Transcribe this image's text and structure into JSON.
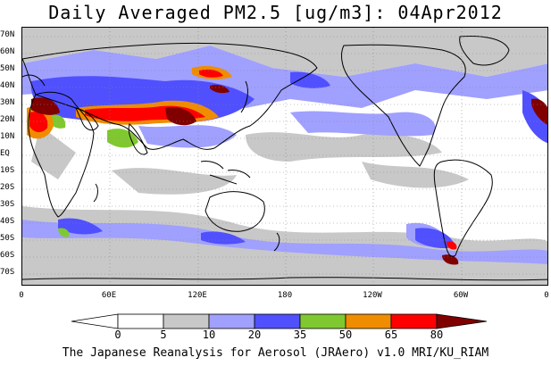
{
  "title": "Daily Averaged PM2.5 [ug/m3]: 04Apr2012",
  "credit": "The Japanese Reanalysis for Aerosol (JRAero) v1.0 MRI/KU_RIAM",
  "lat_ticks": [
    "70N",
    "60N",
    "50N",
    "40N",
    "30N",
    "20N",
    "10N",
    "EQ",
    "10S",
    "20S",
    "30S",
    "40S",
    "50S",
    "60S",
    "70S"
  ],
  "lon_ticks": [
    "0",
    "60E",
    "120E",
    "180",
    "120W",
    "60W",
    "0"
  ],
  "colorbar": {
    "labels": [
      "0",
      "5",
      "10",
      "20",
      "35",
      "50",
      "65",
      "80"
    ],
    "colors": [
      "#ffffff",
      "#c8c8c8",
      "#a0a0ff",
      "#5050ff",
      "#80c830",
      "#f08c00",
      "#ff0000",
      "#800000"
    ]
  }
}
